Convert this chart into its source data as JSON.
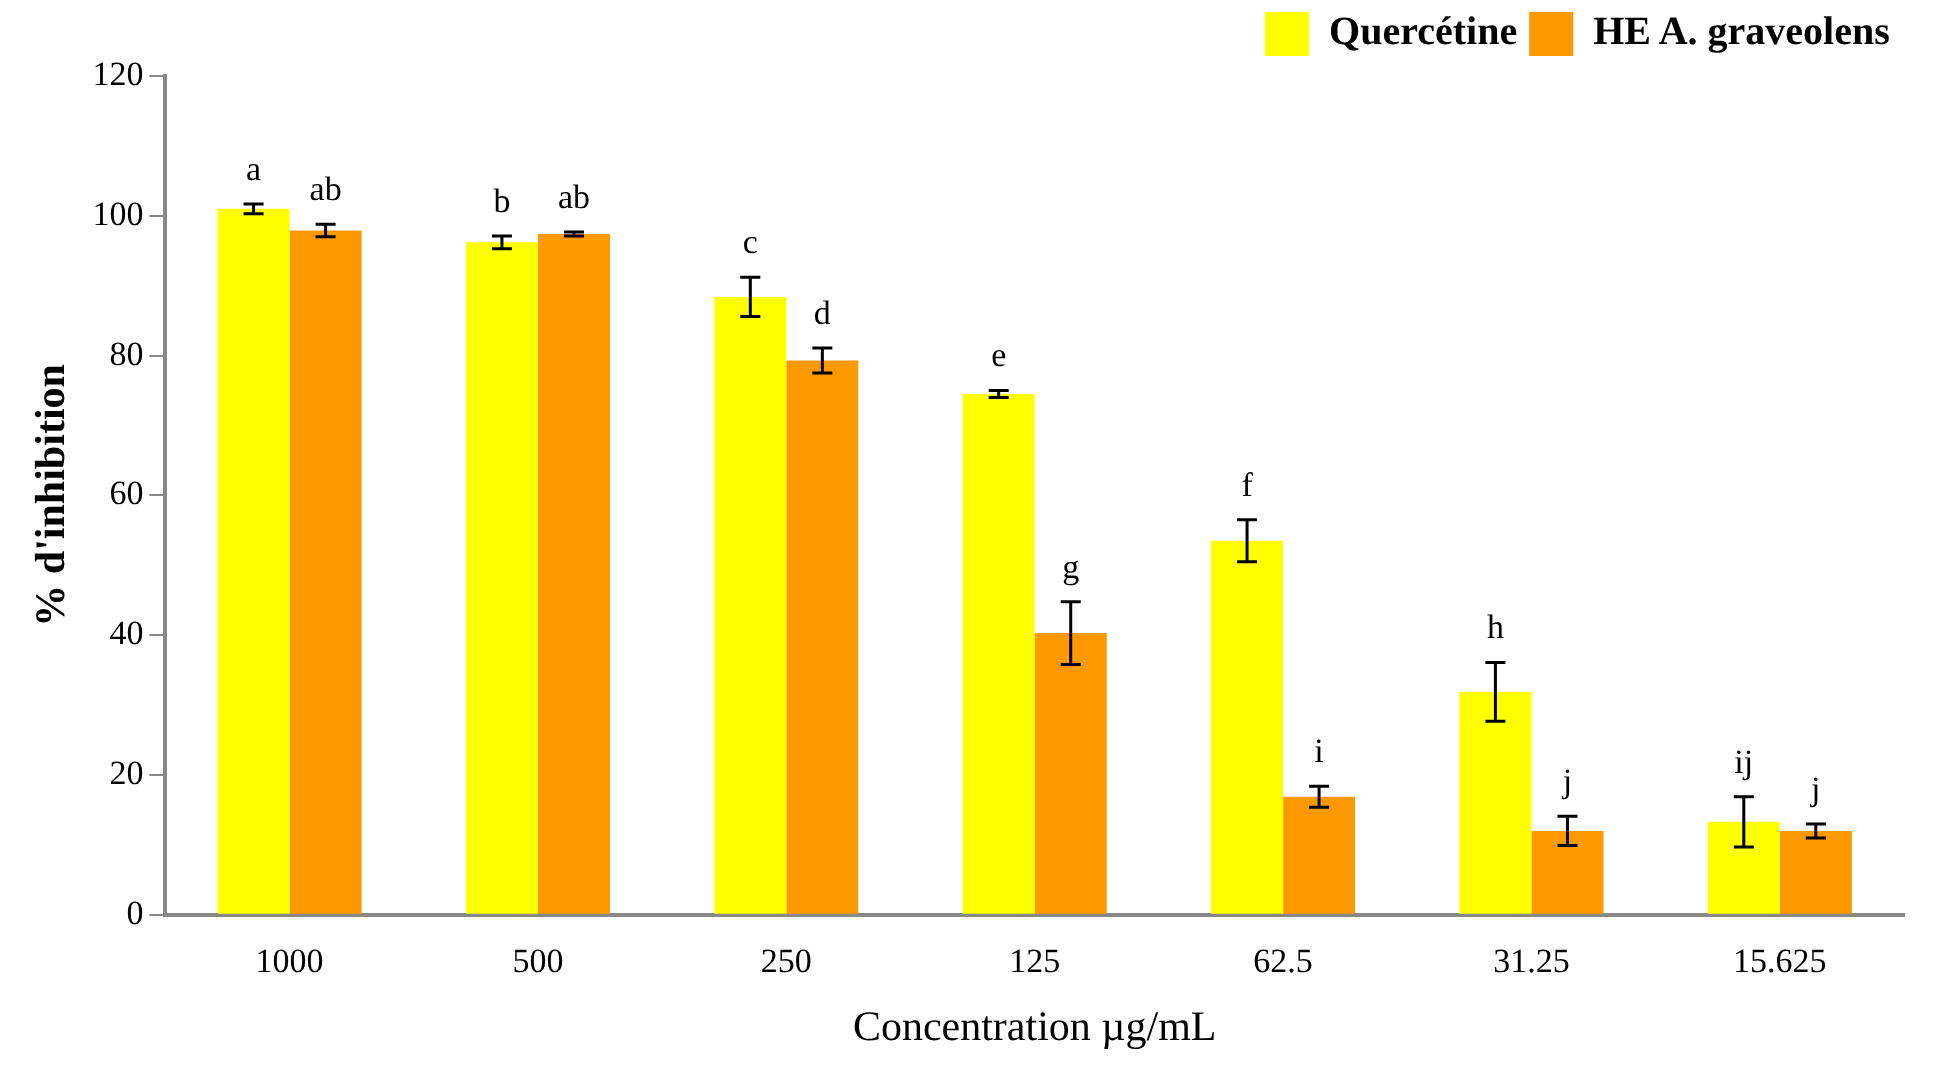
{
  "chart_data": {
    "type": "bar",
    "xlabel": "Concentration µg/mL",
    "ylabel": "% d'inhibition",
    "categories": [
      "1000",
      "500",
      "250",
      "125",
      "62.5",
      "31.25",
      "15.625"
    ],
    "series": [
      {
        "name": "Quercétine",
        "color": "#ffff00",
        "values": [
          101,
          96.2,
          88.4,
          74.5,
          53.5,
          31.9,
          13.3
        ],
        "errors": [
          0.7,
          0.9,
          2.8,
          0.5,
          3,
          4.2,
          3.6
        ],
        "value_labels": [
          "a",
          "b",
          "c",
          "e",
          "f",
          "h",
          "ij"
        ]
      },
      {
        "name": "HE A. graveolens",
        "color": "#ff9900",
        "values": [
          97.9,
          97.4,
          79.3,
          40.3,
          16.9,
          12,
          12
        ],
        "errors": [
          0.9,
          0.3,
          1.8,
          4.5,
          1.5,
          2.1,
          1
        ],
        "value_labels": [
          "ab",
          "ab",
          "d",
          "g",
          "i",
          "j",
          "j"
        ]
      }
    ],
    "ylim": [
      0,
      120
    ],
    "yticks": [
      0,
      20,
      40,
      60,
      80,
      100,
      120
    ],
    "grid": false,
    "legend": "top right"
  }
}
